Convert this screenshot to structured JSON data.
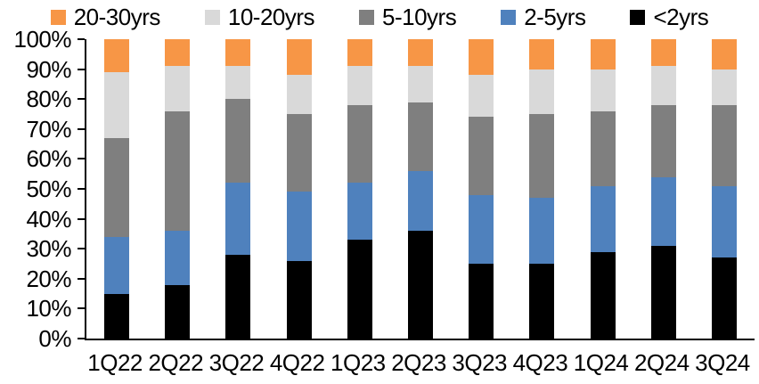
{
  "chart_data": {
    "type": "bar",
    "variant": "stacked-100",
    "title": "",
    "xlabel": "",
    "ylabel": "",
    "ylim": [
      0,
      100
    ],
    "grid": false,
    "legend_position": "top",
    "categories": [
      "1Q22",
      "2Q22",
      "3Q22",
      "4Q22",
      "1Q23",
      "2Q23",
      "3Q23",
      "4Q23",
      "1Q24",
      "2Q24",
      "3Q24"
    ],
    "yticks": [
      "0%",
      "10%",
      "20%",
      "30%",
      "40%",
      "50%",
      "60%",
      "70%",
      "80%",
      "90%",
      "100%"
    ],
    "series": [
      {
        "name": "<2yrs",
        "color": "#000000",
        "values": [
          15,
          18,
          28,
          26,
          33,
          36,
          25,
          25,
          29,
          31,
          27
        ]
      },
      {
        "name": "2-5yrs",
        "color": "#4F81BD",
        "values": [
          19,
          18,
          24,
          23,
          19,
          20,
          23,
          22,
          22,
          23,
          24
        ]
      },
      {
        "name": "5-10yrs",
        "color": "#7F7F7F",
        "values": [
          33,
          40,
          28,
          26,
          26,
          23,
          26,
          28,
          25,
          24,
          27
        ]
      },
      {
        "name": "10-20yrs",
        "color": "#D9D9D9",
        "values": [
          22,
          15,
          11,
          13,
          13,
          12,
          14,
          15,
          14,
          13,
          12
        ]
      },
      {
        "name": "20-30yrs",
        "color": "#F79646",
        "values": [
          11,
          9,
          9,
          12,
          9,
          9,
          12,
          10,
          10,
          9,
          10
        ]
      }
    ],
    "legend_order": [
      "20-30yrs",
      "10-20yrs",
      "5-10yrs",
      "2-5yrs",
      "<2yrs"
    ],
    "colors": {
      "axis": "#000000",
      "text": "#000000",
      "background": "#ffffff"
    }
  }
}
